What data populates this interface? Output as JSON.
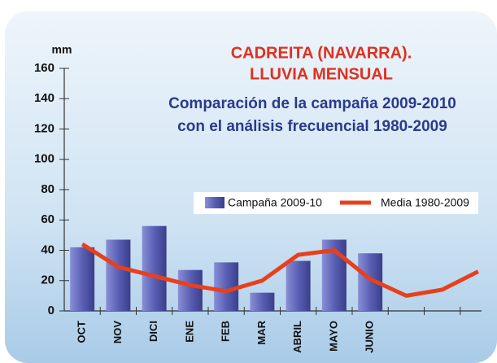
{
  "chart_data": {
    "type": "bar+line",
    "title": [
      "CADREITA (NAVARRA).",
      "LLUVIA MENSUAL"
    ],
    "subtitle": [
      "Comparación de la campaña 2009-2010",
      "con el análisis frecuencial 1980-2009"
    ],
    "y_label": "mm",
    "categories": [
      "OCT",
      "NOV",
      "DICI",
      "ENE",
      "FEB",
      "MAR",
      "ABRIL",
      "MAYO",
      "JUNIO",
      null,
      null,
      null
    ],
    "series": [
      {
        "name": "Campaña 2009-10",
        "type": "bar",
        "color": "#5a5fb4",
        "values": [
          42,
          47,
          56,
          27,
          32,
          12,
          33,
          47,
          38,
          null,
          null,
          null
        ]
      },
      {
        "name": "Media 1980-2009",
        "type": "line",
        "color": "#e8401c",
        "values": [
          44,
          29,
          23,
          17,
          13,
          20,
          37,
          40,
          21,
          10,
          14,
          26
        ]
      }
    ],
    "ylim": [
      0,
      160
    ],
    "yticks": [
      0,
      20,
      40,
      60,
      80,
      100,
      120,
      140,
      160
    ]
  }
}
